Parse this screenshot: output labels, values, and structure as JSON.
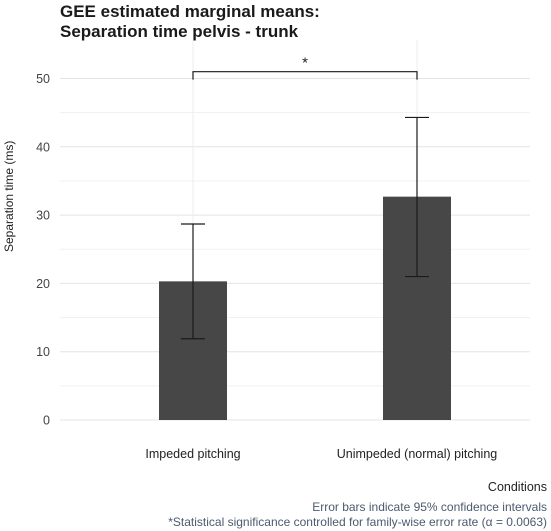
{
  "chart_data": {
    "type": "bar",
    "title_line1": "GEE estimated marginal means:",
    "title_line2": "Separation time pelvis - trunk",
    "xlabel": "Conditions",
    "ylabel": "Separation time (ms)",
    "categories": [
      "Impeded pitching",
      "Unimpeded (normal) pitching"
    ],
    "values": [
      20.3,
      32.7
    ],
    "ci_lower": [
      11.9,
      21.0
    ],
    "ci_upper": [
      28.7,
      44.3
    ],
    "ylim": [
      0,
      53
    ],
    "yticks": [
      0,
      10,
      20,
      30,
      40,
      50
    ],
    "bar_color": "#474747",
    "grid": true,
    "significance": {
      "label": "*",
      "between": [
        0,
        1
      ],
      "level": 51
    },
    "caption_line1": "Error bars indicate 95% confidence intervals",
    "caption_line2": "*Statistical significance controlled for family-wise error rate (α = 0.0063)"
  }
}
